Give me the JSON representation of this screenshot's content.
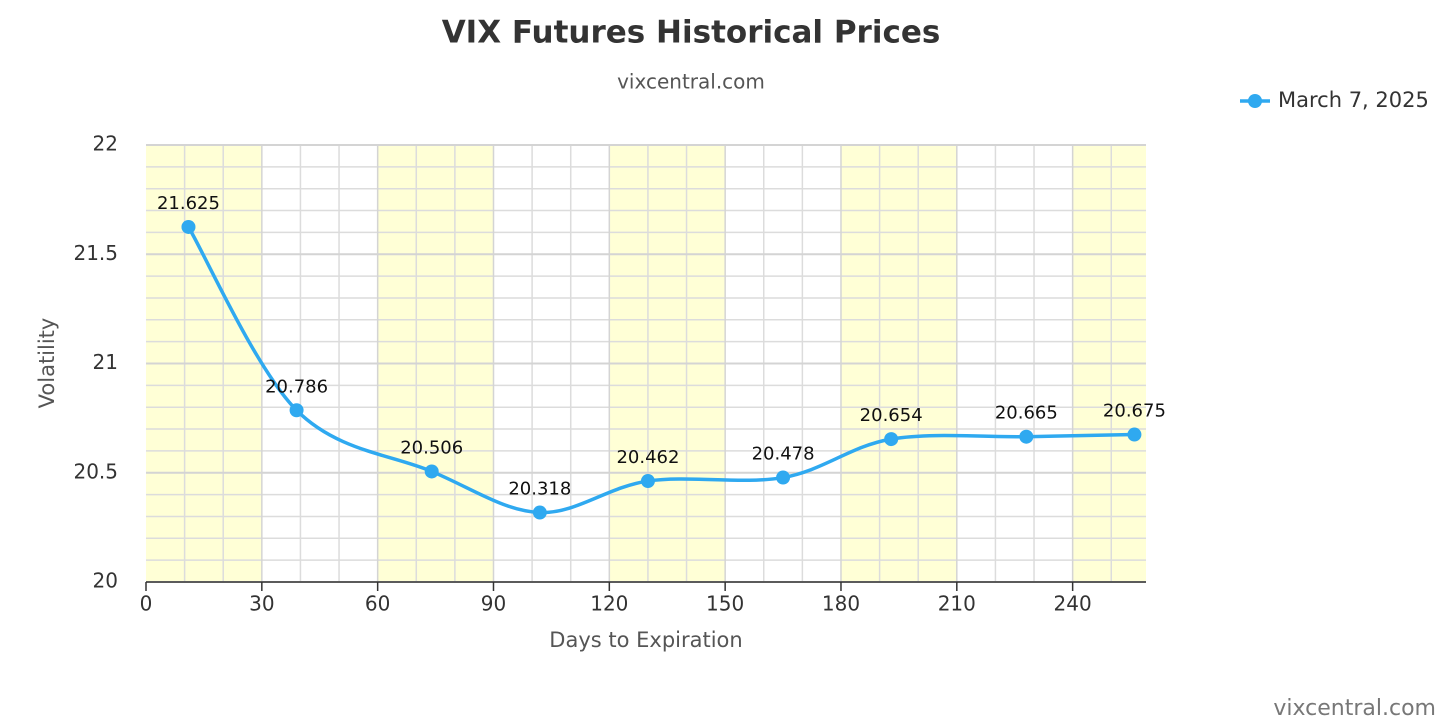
{
  "chart_data": {
    "type": "line",
    "title": "VIX Futures Historical Prices",
    "subtitle": "vixcentral.com",
    "credit": "vixcentral.com",
    "x_label": "Days to Expiration",
    "y_label": "Volatility",
    "x": [
      11,
      39,
      74,
      102,
      130,
      165,
      193,
      228,
      256
    ],
    "series": [
      {
        "name": "March 7, 2025",
        "color": "#2fa9f0",
        "values": [
          21.625,
          20.786,
          20.506,
          20.318,
          20.462,
          20.478,
          20.654,
          20.665,
          20.675
        ]
      }
    ],
    "xlim": [
      0,
      259
    ],
    "ylim": [
      20,
      22
    ],
    "xticks": [
      0,
      30,
      60,
      90,
      120,
      150,
      180,
      210,
      240
    ],
    "yticks": [
      20,
      20.5,
      21,
      21.5,
      22
    ],
    "grid": true,
    "band_color": "#ffffd6",
    "legend": "top-right",
    "data_labels": true
  }
}
